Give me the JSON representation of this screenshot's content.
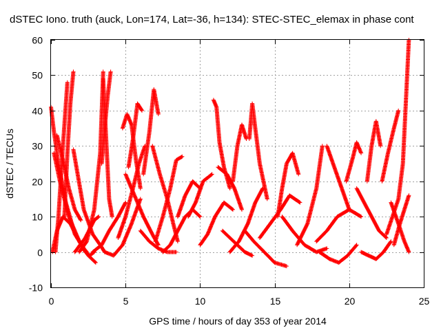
{
  "chart_data": {
    "type": "scatter",
    "title": "dSTEC Iono. truth (auck, Lon=174, Lat=-36, h=134): STEC-STEC_elemax in phase cont",
    "xlabel": "GPS time / hours of day 353 of year 2014",
    "ylabel": "dSTEC  / TECUs",
    "xlim": [
      0,
      25
    ],
    "ylim": [
      -10,
      60
    ],
    "xticks": [
      0,
      5,
      10,
      15,
      20,
      25
    ],
    "yticks": [
      -10,
      0,
      10,
      20,
      30,
      40,
      50,
      60
    ],
    "grid": true,
    "marker": "+",
    "color": "#ff0000",
    "series": [
      {
        "x": [
          0.0,
          0.2,
          0.5,
          1.0,
          1.6,
          2.2,
          2.4
        ],
        "y": [
          41,
          34,
          25,
          14,
          5,
          1,
          0
        ]
      },
      {
        "x": [
          0.1,
          0.4,
          0.8,
          1.3,
          1.9,
          2.3,
          2.6,
          2.9
        ],
        "y": [
          0,
          6,
          10,
          8,
          3,
          0,
          -1,
          0
        ]
      },
      {
        "x": [
          0.2,
          0.6,
          1.2,
          1.9,
          2.5,
          3.0
        ],
        "y": [
          28,
          20,
          10,
          3,
          -1,
          -3
        ]
      },
      {
        "x": [
          0.4,
          0.8,
          1.2,
          1.6,
          2.0
        ],
        "y": [
          33,
          26,
          18,
          12,
          9
        ]
      },
      {
        "x": [
          0.3,
          0.5,
          0.8,
          1.1
        ],
        "y": [
          0,
          10,
          30,
          48
        ]
      },
      {
        "x": [
          0.9,
          1.1,
          1.3,
          1.5
        ],
        "y": [
          10,
          28,
          42,
          51
        ]
      },
      {
        "x": [
          1.5,
          2.2,
          2.8,
          3.3,
          3.6
        ],
        "y": [
          29,
          12,
          5,
          2,
          0
        ]
      },
      {
        "x": [
          1.9,
          2.4,
          2.9,
          3.3,
          3.5
        ],
        "y": [
          0,
          3,
          12,
          28,
          51
        ]
      },
      {
        "x": [
          1.6,
          2.3,
          2.9,
          3.2
        ],
        "y": [
          0,
          4,
          9,
          10
        ]
      },
      {
        "x": [
          3.5,
          3.7,
          3.9,
          4.1
        ],
        "y": [
          49,
          32,
          15,
          10
        ]
      },
      {
        "x": [
          3.4,
          3.6,
          3.8,
          4.0
        ],
        "y": [
          25,
          35,
          44,
          51
        ]
      },
      {
        "x": [
          2.8,
          3.4,
          3.9,
          4.5,
          5.0
        ],
        "y": [
          0,
          2,
          6,
          10,
          14
        ]
      },
      {
        "x": [
          3.6,
          4.2,
          4.8,
          5.4,
          6.0
        ],
        "y": [
          0,
          -1,
          2,
          8,
          15
        ]
      },
      {
        "x": [
          4.8,
          5.1,
          5.4,
          5.7,
          6.0
        ],
        "y": [
          35,
          39,
          36,
          26,
          18
        ]
      },
      {
        "x": [
          5.2,
          5.5,
          5.8,
          6.1
        ],
        "y": [
          24,
          32,
          42,
          40
        ]
      },
      {
        "x": [
          4.5,
          5.0,
          5.5,
          5.9,
          6.3
        ],
        "y": [
          4,
          10,
          18,
          25,
          30
        ]
      },
      {
        "x": [
          5.0,
          5.6,
          6.2,
          6.8,
          7.2
        ],
        "y": [
          22,
          16,
          10,
          5,
          2
        ]
      },
      {
        "x": [
          6.2,
          6.6,
          6.9,
          7.2
        ],
        "y": [
          22,
          34,
          46,
          39
        ]
      },
      {
        "x": [
          6.8,
          7.3,
          7.8,
          8.2,
          8.5
        ],
        "y": [
          30,
          22,
          15,
          8,
          3
        ]
      },
      {
        "x": [
          6.0,
          6.6,
          7.2,
          7.8,
          8.4
        ],
        "y": [
          6,
          3,
          1,
          0,
          0
        ]
      },
      {
        "x": [
          7.0,
          7.5,
          8.0,
          8.4,
          8.8
        ],
        "y": [
          3,
          10,
          18,
          26,
          27
        ]
      },
      {
        "x": [
          7.5,
          8.0,
          8.5,
          9.0,
          9.5,
          10.0
        ],
        "y": [
          0,
          2,
          6,
          10,
          12,
          10
        ]
      },
      {
        "x": [
          8.5,
          9.0,
          9.5,
          10.0
        ],
        "y": [
          10,
          16,
          20,
          18
        ]
      },
      {
        "x": [
          9.2,
          9.7,
          10.2,
          10.8
        ],
        "y": [
          10,
          14,
          20,
          22
        ]
      },
      {
        "x": [
          10.0,
          10.5,
          11.0,
          11.6,
          12.2
        ],
        "y": [
          2,
          5,
          10,
          14,
          12
        ]
      },
      {
        "x": [
          10.9,
          11.1,
          11.3,
          11.6,
          12.0
        ],
        "y": [
          43,
          41,
          31,
          24,
          18
        ]
      },
      {
        "x": [
          11.2,
          11.8,
          12.3,
          12.8
        ],
        "y": [
          24,
          22,
          18,
          12
        ]
      },
      {
        "x": [
          11.5,
          12.0,
          12.5,
          13.0,
          13.5
        ],
        "y": [
          6,
          4,
          2,
          0,
          -1
        ]
      },
      {
        "x": [
          12.0,
          12.6,
          13.2,
          13.7,
          14.2
        ],
        "y": [
          0,
          3,
          8,
          14,
          18
        ]
      },
      {
        "x": [
          12.2,
          12.5,
          12.8,
          13.1
        ],
        "y": [
          20,
          30,
          36,
          32
        ]
      },
      {
        "x": [
          13.3,
          13.5,
          13.7,
          14.0,
          14.5
        ],
        "y": [
          32,
          42,
          35,
          25,
          15
        ]
      },
      {
        "x": [
          13.0,
          13.6,
          14.3,
          15.0,
          15.8
        ],
        "y": [
          6,
          3,
          0,
          -3,
          -4
        ]
      },
      {
        "x": [
          14.0,
          14.7,
          15.4,
          16.0,
          16.7
        ],
        "y": [
          4,
          8,
          12,
          16,
          14
        ]
      },
      {
        "x": [
          15.2,
          15.5,
          15.8,
          16.2,
          16.6
        ],
        "y": [
          10,
          18,
          25,
          28,
          22
        ]
      },
      {
        "x": [
          15.5,
          16.2,
          17.0,
          17.8,
          18.5
        ],
        "y": [
          10,
          6,
          2,
          0,
          1
        ]
      },
      {
        "x": [
          16.5,
          17.2,
          17.8,
          18.2
        ],
        "y": [
          2,
          8,
          18,
          30
        ]
      },
      {
        "x": [
          17.8,
          18.5,
          19.2,
          20.0,
          20.8
        ],
        "y": [
          3,
          6,
          10,
          12,
          10
        ]
      },
      {
        "x": [
          18.5,
          19.0,
          19.5,
          20.0
        ],
        "y": [
          30,
          24,
          18,
          12
        ]
      },
      {
        "x": [
          18.0,
          18.7,
          19.3,
          19.9,
          20.5
        ],
        "y": [
          0,
          -2,
          -3,
          -1,
          2
        ]
      },
      {
        "x": [
          19.8,
          20.2,
          20.5,
          20.8
        ],
        "y": [
          20,
          26,
          31,
          28
        ]
      },
      {
        "x": [
          20.5,
          21.0,
          21.5,
          22.0,
          22.5
        ],
        "y": [
          18,
          14,
          10,
          6,
          4
        ]
      },
      {
        "x": [
          21.2,
          21.5,
          21.8,
          22.1
        ],
        "y": [
          20,
          30,
          37,
          30
        ]
      },
      {
        "x": [
          20.8,
          21.3,
          21.8,
          22.3,
          22.8
        ],
        "y": [
          0,
          -1,
          -2,
          0,
          3
        ]
      },
      {
        "x": [
          22.2,
          22.6,
          23.0,
          23.3
        ],
        "y": [
          20,
          28,
          35,
          40
        ]
      },
      {
        "x": [
          22.5,
          22.9,
          23.3,
          23.6,
          24.0
        ],
        "y": [
          5,
          10,
          15,
          25,
          60
        ]
      },
      {
        "x": [
          23.0,
          23.4,
          23.7,
          24.0
        ],
        "y": [
          2,
          8,
          12,
          16
        ]
      },
      {
        "x": [
          22.8,
          23.3,
          23.7,
          24.0
        ],
        "y": [
          14,
          8,
          3,
          0
        ]
      }
    ]
  }
}
